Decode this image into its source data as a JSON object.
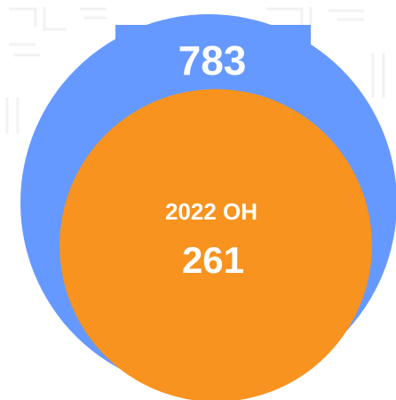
{
  "chart_data": {
    "type": "nested-circle",
    "categories": [
      null,
      "2022 OH"
    ],
    "values": [
      783,
      261
    ],
    "colors": [
      "#6699ff",
      "#f7931e"
    ]
  }
}
